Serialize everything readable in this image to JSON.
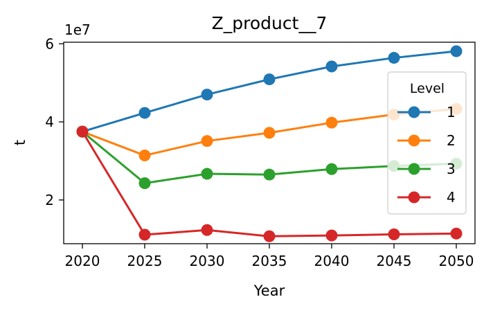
{
  "chart_data": {
    "type": "line",
    "title": "Z_product__7",
    "xlabel": "Year",
    "ylabel": "t",
    "y_offset_label": "1e7",
    "x": [
      2020,
      2025,
      2030,
      2035,
      2040,
      2045,
      2050
    ],
    "x_ticks": [
      "2020",
      "2025",
      "2030",
      "2035",
      "2040",
      "2045",
      "2050"
    ],
    "y_ticks": [
      "2",
      "4",
      "6"
    ],
    "y_tick_values": [
      20000000,
      40000000,
      60000000
    ],
    "xlim": [
      2018.5,
      2051.5
    ],
    "ylim": [
      8800000,
      60400000
    ],
    "grid": false,
    "legend_title": "Level",
    "legend_position": "right",
    "series": [
      {
        "name": "1",
        "color": "#1f77b4",
        "values": [
          37500000,
          42300000,
          47000000,
          50900000,
          54200000,
          56400000,
          58100000
        ]
      },
      {
        "name": "2",
        "color": "#ff7f0e",
        "values": [
          37500000,
          31400000,
          35100000,
          37200000,
          39800000,
          41900000,
          43300000
        ]
      },
      {
        "name": "3",
        "color": "#2ca02c",
        "values": [
          37500000,
          24300000,
          26700000,
          26500000,
          27900000,
          28700000,
          29300000
        ]
      },
      {
        "name": "4",
        "color": "#d62728",
        "values": [
          37500000,
          11100000,
          12300000,
          10700000,
          10900000,
          11200000,
          11400000
        ]
      }
    ]
  }
}
